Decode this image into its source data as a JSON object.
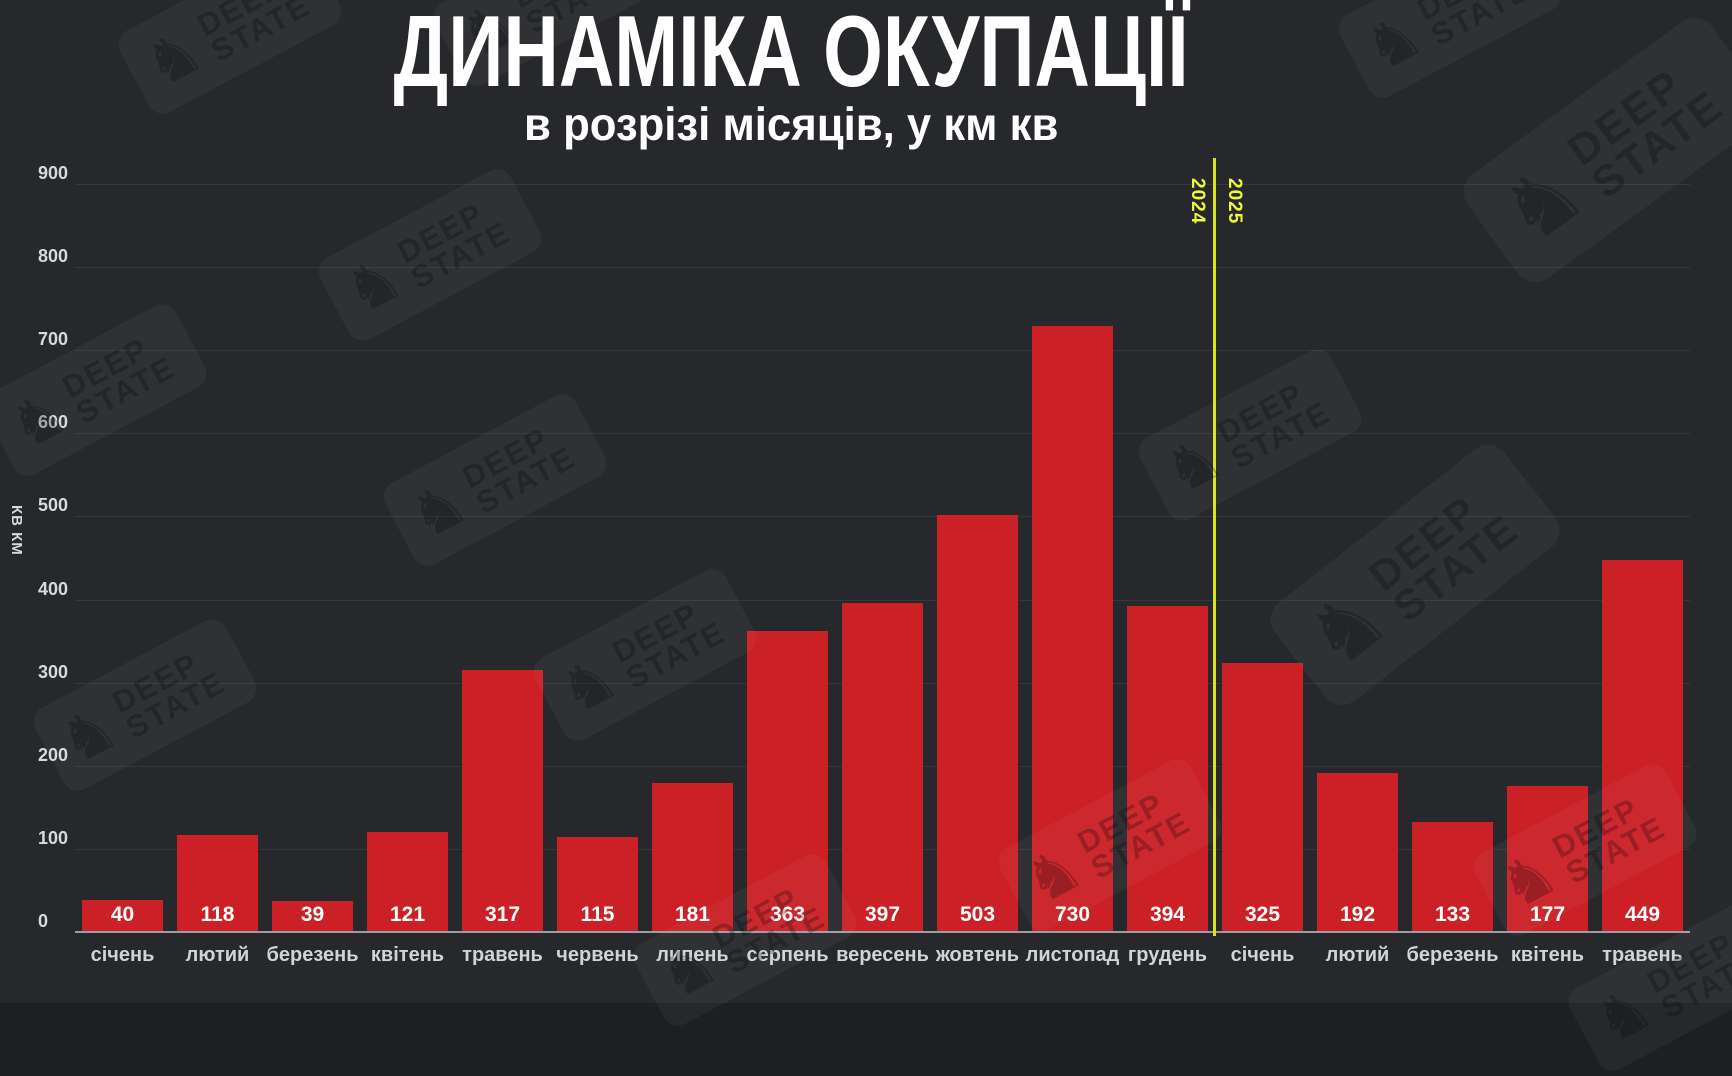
{
  "header": {
    "title": "ДИНАМІКА ОКУПАЦІЇ",
    "subtitle": "в розрізі місяців, у км кв"
  },
  "y_axis": {
    "label": "КВ КМ"
  },
  "divider": {
    "left_year": "2024",
    "right_year": "2025"
  },
  "watermark": {
    "knight_icon": "♞",
    "line1": "DEEP",
    "line2": "STATE"
  },
  "colors": {
    "background": "#26282c",
    "bar": "#ca2026",
    "bar_value_text": "#ffffff",
    "axis_line": "#9b9ea1",
    "gridline": "#34373b",
    "tick_text": "#d8d9db",
    "month_text": "#d2d3d5",
    "divider_yellow": "#d9e326",
    "year_text": "#eef93e",
    "title_text": "#ffffff"
  },
  "chart_data": {
    "type": "bar",
    "title": "ДИНАМІКА ОКУПАЦІЇ",
    "subtitle": "в розрізі місяців, у км кв",
    "xlabel": "",
    "ylabel": "КВ КМ",
    "ylim": [
      0,
      900
    ],
    "yticks": [
      0,
      100,
      200,
      300,
      400,
      500,
      600,
      700,
      800,
      900
    ],
    "grid": true,
    "legend_position": "none",
    "categories": [
      "січень",
      "лютий",
      "березень",
      "квітень",
      "травень",
      "червень",
      "липень",
      "серпень",
      "вересень",
      "жовтень",
      "листопад",
      "грудень",
      "січень",
      "лютий",
      "березень",
      "квітень",
      "травень"
    ],
    "values": [
      40,
      118,
      39,
      121,
      317,
      115,
      181,
      363,
      397,
      503,
      730,
      394,
      325,
      192,
      133,
      177,
      449
    ],
    "year_groups": [
      {
        "year": "2024",
        "from_index": 0,
        "to_index": 11
      },
      {
        "year": "2025",
        "from_index": 12,
        "to_index": 16
      }
    ],
    "divider_after_index": 11
  }
}
